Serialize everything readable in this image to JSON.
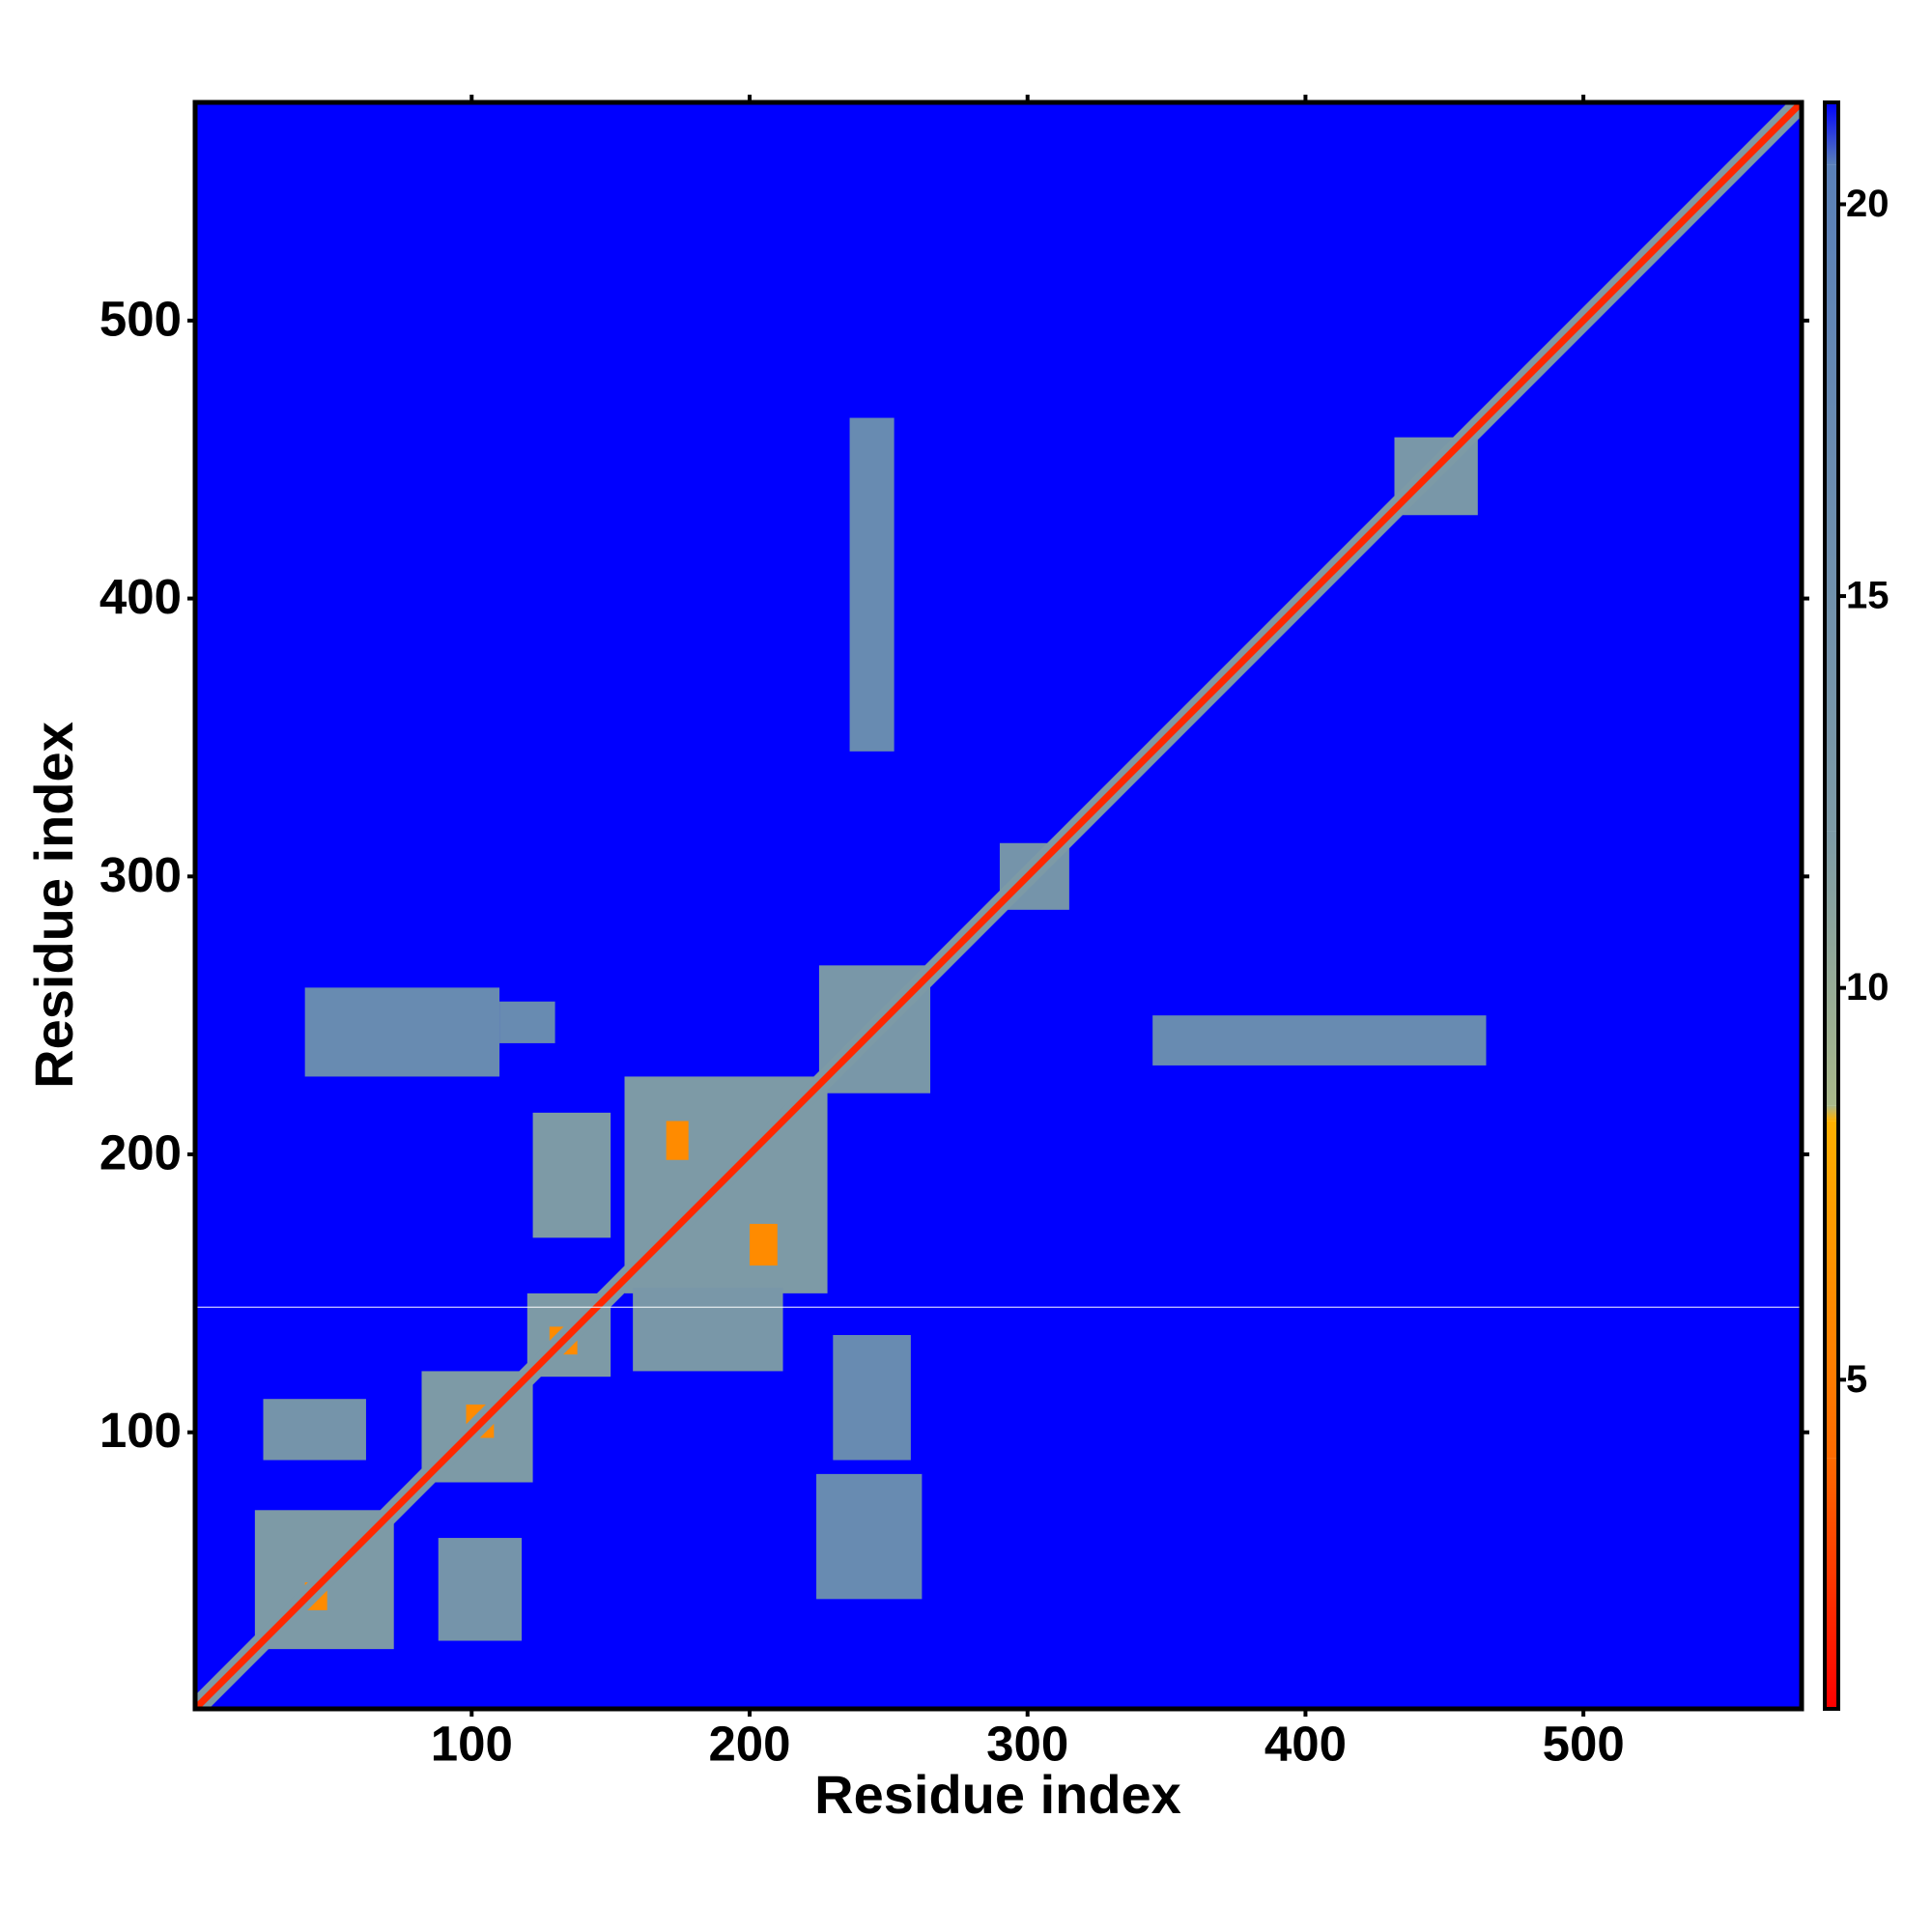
{
  "chart_data": {
    "type": "heatmap",
    "x_label": "Residue index",
    "y_label": "Residue index",
    "xlim": [
      0.5,
      578.5
    ],
    "ylim": [
      0.5,
      578.5
    ],
    "xticks": [
      100,
      200,
      300,
      400,
      500
    ],
    "yticks": [
      100,
      200,
      300,
      400,
      500
    ],
    "zlim": [
      0.8,
      21.3
    ],
    "zticks": [
      5,
      10,
      15,
      20
    ],
    "colorscale": [
      [
        0.8,
        "#ff0000"
      ],
      [
        4,
        "#ff6a00"
      ],
      [
        8.3,
        "#ffb000"
      ],
      [
        8.5,
        "#a9b88a"
      ],
      [
        12,
        "#7d9aa6"
      ],
      [
        20.5,
        "#5a80b8"
      ],
      [
        21.3,
        "#0000ff"
      ]
    ],
    "background_value": 21.3,
    "cells": [
      [
        225,
        265,
        222,
        268,
        13
      ],
      [
        290,
        315,
        288,
        312,
        14
      ],
      [
        432,
        462,
        430,
        458,
        13
      ],
      [
        155,
        228,
        150,
        228,
        12
      ],
      [
        122,
        150,
        170,
        215,
        12
      ],
      [
        158,
        212,
        122,
        152,
        13
      ],
      [
        22,
        72,
        22,
        72,
        12
      ],
      [
        82,
        122,
        82,
        122,
        12
      ],
      [
        25,
        62,
        90,
        112,
        14
      ],
      [
        88,
        118,
        25,
        62,
        14
      ],
      [
        120,
        150,
        120,
        150,
        12
      ],
      [
        170,
        178,
        198,
        212,
        6
      ],
      [
        200,
        210,
        160,
        175,
        6
      ],
      [
        128,
        138,
        128,
        138,
        6
      ],
      [
        98,
        108,
        98,
        110,
        6
      ],
      [
        40,
        48,
        36,
        46,
        6
      ],
      [
        40,
        110,
        228,
        260,
        17
      ],
      [
        110,
        130,
        240,
        255,
        17
      ],
      [
        236,
        252,
        345,
        465,
        17
      ],
      [
        230,
        258,
        90,
        135,
        17
      ],
      [
        224,
        262,
        40,
        85,
        17
      ],
      [
        345,
        465,
        232,
        250,
        17
      ]
    ],
    "diagonal": [
      {
        "x": [
          1,
          578
        ],
        "y": [
          1,
          578
        ],
        "value": 12
      },
      {
        "x": [
          1,
          578
        ],
        "y": [
          1,
          578
        ],
        "value": 2
      }
    ],
    "hlines": [
      145
    ]
  }
}
